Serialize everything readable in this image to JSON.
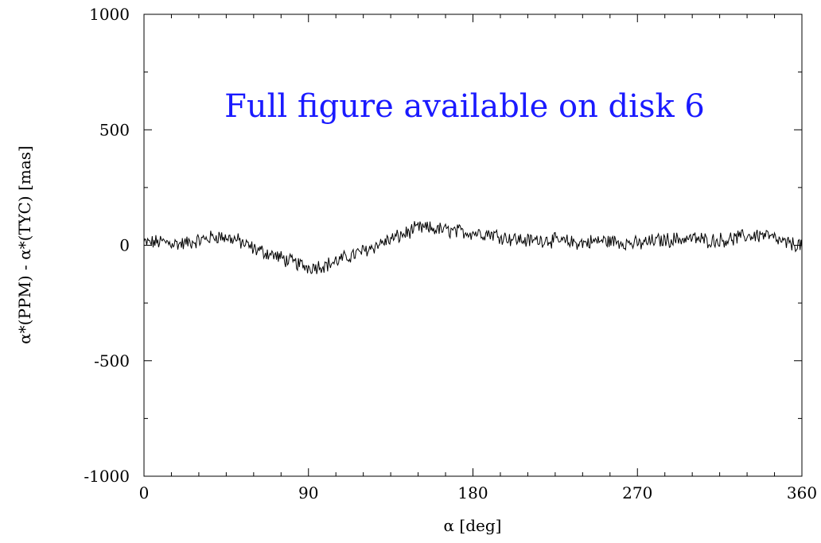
{
  "chart_data": {
    "type": "line",
    "title": "",
    "xlabel": "α [deg]",
    "ylabel": "α*(PPM) - α*(TYC) [mas]",
    "xlim": [
      0,
      360
    ],
    "ylim": [
      -1000,
      1000
    ],
    "xticks": [
      0,
      90,
      180,
      270,
      360
    ],
    "xtick_labels": [
      "0",
      "90",
      "180",
      "270",
      "360"
    ],
    "yticks": [
      -1000,
      -500,
      0,
      500,
      1000
    ],
    "ytick_labels": [
      "-1000",
      "-500",
      "0",
      "500",
      "1000"
    ],
    "grid": false,
    "line_color": "#000000",
    "annotation": {
      "text": "Full figure available on disk 6",
      "color": "#1a1aff"
    },
    "series": [
      {
        "x": [
          0,
          10,
          20,
          30,
          40,
          50,
          60,
          70,
          80,
          90,
          100,
          110,
          120,
          130,
          140,
          150,
          160,
          170,
          180,
          190,
          200,
          210,
          220,
          230,
          240,
          250,
          260,
          270,
          280,
          290,
          300,
          310,
          320,
          330,
          340,
          350,
          360
        ],
        "values": [
          10,
          15,
          5,
          20,
          40,
          25,
          -15,
          -40,
          -70,
          -95,
          -85,
          -55,
          -25,
          10,
          40,
          75,
          70,
          60,
          55,
          50,
          30,
          20,
          25,
          15,
          10,
          20,
          15,
          5,
          20,
          25,
          30,
          20,
          25,
          40,
          45,
          10,
          0
        ]
      }
    ]
  }
}
